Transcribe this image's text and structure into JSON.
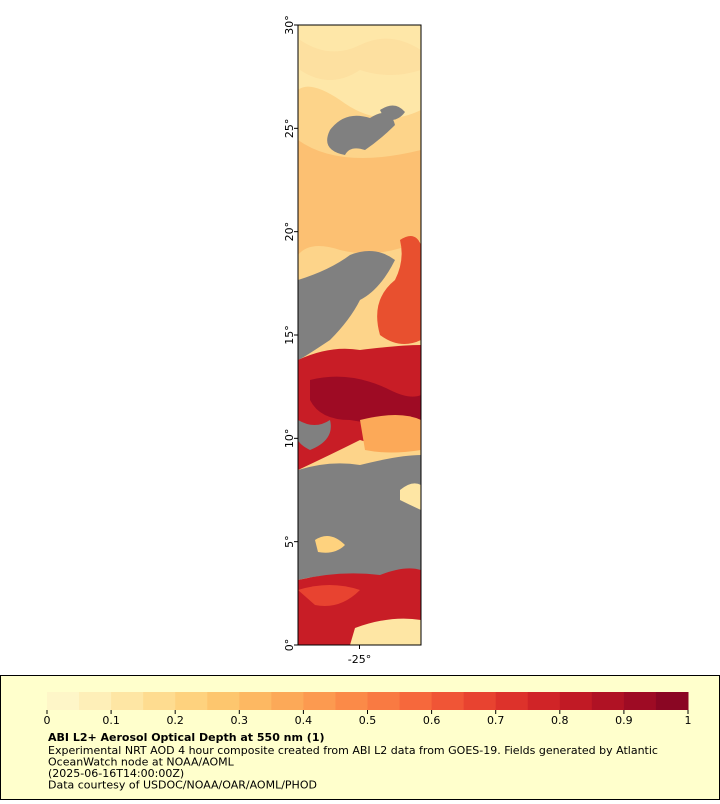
{
  "map": {
    "ylim": [
      0,
      30
    ],
    "yticks": [
      {
        "value": 0,
        "label": "0°"
      },
      {
        "value": 5,
        "label": "5°"
      },
      {
        "value": 10,
        "label": "10°"
      },
      {
        "value": 15,
        "label": "15°"
      },
      {
        "value": 20,
        "label": "20°"
      },
      {
        "value": 25,
        "label": "25°"
      },
      {
        "value": 30,
        "label": "30°"
      }
    ],
    "xlim": [
      -28,
      -22
    ],
    "xticks": [
      {
        "value": -25,
        "label": "-25°"
      }
    ]
  },
  "colorbar": {
    "lim": [
      0,
      1
    ],
    "ticks": [
      0,
      0.1,
      0.2,
      0.3,
      0.4,
      0.5,
      0.6,
      0.7,
      0.8,
      0.9,
      1
    ],
    "colors": [
      "#fef6c8",
      "#feefb8",
      "#fee6a4",
      "#fedc90",
      "#fed27e",
      "#fdc66e",
      "#fdb862",
      "#fca958",
      "#fc9a50",
      "#fb8a48",
      "#f97a42",
      "#f6683c",
      "#f05536",
      "#e84330",
      "#dd322b",
      "#d02427",
      "#c11a25",
      "#b01224",
      "#9e0b24",
      "#8a0623"
    ]
  },
  "legend": {
    "title": "ABI L2+ Aerosol Optical Depth at 550 nm (1)",
    "lines": [
      "Experimental NRT AOD 4 hour composite created from ABI L2 data from GOES-19. Fields generated by Atlantic",
      "OceanWatch node at NOAA/AOML",
      "(2025-06-16T14:00:00Z)",
      "Data courtesy of USDOC/NOAA/OAR/AOML/PHOD"
    ]
  }
}
